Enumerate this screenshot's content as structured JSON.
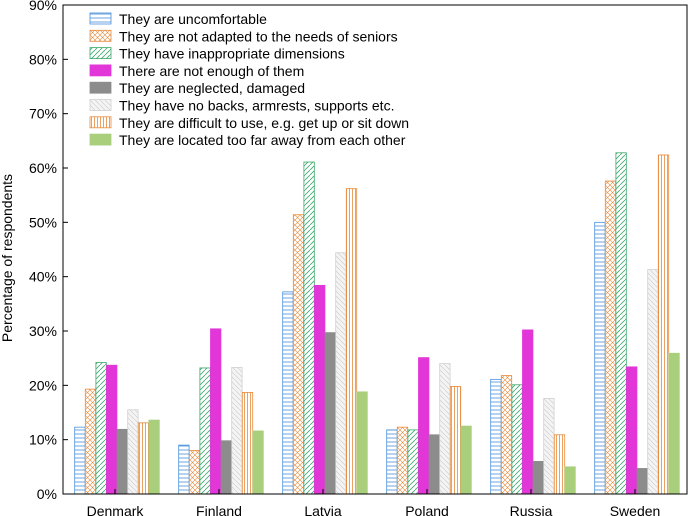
{
  "chart_data": {
    "type": "bar",
    "title": "",
    "xlabel": "",
    "ylabel": "Percentage of respondents",
    "ylim": [
      0,
      90
    ],
    "yticks": [
      "0%",
      "10%",
      "20%",
      "30%",
      "40%",
      "50%",
      "60%",
      "70%",
      "80%",
      "90%"
    ],
    "grid": false,
    "legend_position": "top-left",
    "categories": [
      "Denmark",
      "Finland",
      "Latvia",
      "Poland",
      "Russia",
      "Sweden"
    ],
    "series": [
      {
        "name": "They are uncomfortable",
        "color": "#4a90d9",
        "pattern": "hlines",
        "values": [
          12.3,
          9.0,
          37.2,
          11.8,
          21.1,
          50.0
        ]
      },
      {
        "name": "They are not adapted to the needs of seniors",
        "color": "#e8893a",
        "pattern": "crosshatch",
        "values": [
          19.3,
          8.0,
          51.4,
          12.3,
          21.8,
          57.6
        ]
      },
      {
        "name": "They have inappropriate dimensions",
        "color": "#3aa86b",
        "pattern": "diagonal",
        "values": [
          24.2,
          23.2,
          61.1,
          11.8,
          20.1,
          62.8
        ]
      },
      {
        "name": "There are not enough of them",
        "color": "#e236d8",
        "pattern": "solid",
        "values": [
          23.7,
          30.4,
          38.4,
          25.1,
          30.2,
          23.4
        ]
      },
      {
        "name": "They are neglected, damaged",
        "color": "#8c8c8c",
        "pattern": "solid",
        "values": [
          11.9,
          9.8,
          29.7,
          10.9,
          6.0,
          4.7
        ]
      },
      {
        "name": "They have no backs, armrests, supports etc.",
        "color": "#d0d0d0",
        "pattern": "diagonal",
        "values": [
          15.5,
          23.3,
          44.4,
          24.0,
          17.6,
          41.3
        ]
      },
      {
        "name": "They are difficult to use, e.g. get up or sit down",
        "color": "#e8893a",
        "pattern": "vlines",
        "values": [
          13.1,
          18.7,
          56.2,
          19.8,
          10.9,
          62.4
        ]
      },
      {
        "name": "They are located too far away from each other",
        "color": "#a9cf7d",
        "pattern": "solid",
        "values": [
          13.6,
          11.6,
          18.8,
          12.5,
          5.0,
          25.9
        ]
      }
    ]
  }
}
